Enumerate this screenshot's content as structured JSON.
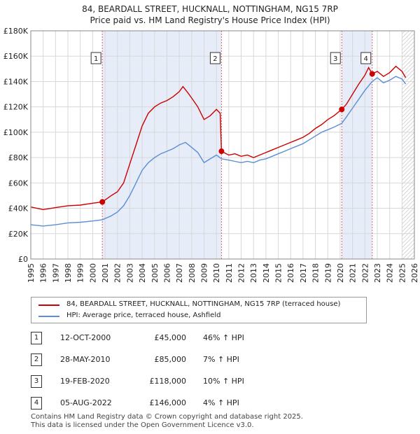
{
  "title_line1": "84, BEARDALL STREET, HUCKNALL, NOTTINGHAM, NG15 7RP",
  "title_line2": "Price paid vs. HM Land Registry's House Price Index (HPI)",
  "colors": {
    "property": "#cc0000",
    "hpi": "#5b8ed6",
    "shade": "#e6ecf8",
    "grid": "#d8d8d8"
  },
  "chart_data": {
    "type": "line",
    "title": "Price paid vs. HM Land Registry's House Price Index (HPI)",
    "xlabel": "",
    "ylabel": "",
    "xlim": [
      1995,
      2026
    ],
    "ylim": [
      0,
      180000
    ],
    "y_ticks": [
      0,
      20000,
      40000,
      60000,
      80000,
      100000,
      120000,
      140000,
      160000,
      180000
    ],
    "y_tick_labels": [
      "£0",
      "£20K",
      "£40K",
      "£60K",
      "£80K",
      "£100K",
      "£120K",
      "£140K",
      "£160K",
      "£180K"
    ],
    "x_ticks": [
      1995,
      1996,
      1997,
      1998,
      1999,
      2000,
      2001,
      2002,
      2003,
      2004,
      2005,
      2006,
      2007,
      2008,
      2009,
      2010,
      2011,
      2012,
      2013,
      2014,
      2015,
      2016,
      2017,
      2018,
      2019,
      2020,
      2021,
      2022,
      2023,
      2024,
      2025,
      2026
    ],
    "shaded_ranges": [
      [
        2000.78,
        2010.41
      ],
      [
        2020.13,
        2022.59
      ]
    ],
    "hatch_from": 2025.0,
    "series": [
      {
        "name": "84, BEARDALL STREET, HUCKNALL, NOTTINGHAM, NG15 7RP (terraced house)",
        "color": "#cc0000",
        "points": [
          [
            1995,
            41000
          ],
          [
            1996,
            39000
          ],
          [
            1997,
            40500
          ],
          [
            1998,
            42000
          ],
          [
            1999,
            42500
          ],
          [
            2000,
            44000
          ],
          [
            2000.78,
            45000
          ],
          [
            2001.5,
            50000
          ],
          [
            2002,
            53000
          ],
          [
            2002.5,
            60000
          ],
          [
            2003,
            75000
          ],
          [
            2003.5,
            90000
          ],
          [
            2004,
            105000
          ],
          [
            2004.5,
            115000
          ],
          [
            2005,
            120000
          ],
          [
            2005.5,
            123000
          ],
          [
            2006,
            125000
          ],
          [
            2006.5,
            128000
          ],
          [
            2007,
            132000
          ],
          [
            2007.3,
            136000
          ],
          [
            2007.7,
            131000
          ],
          [
            2008,
            127000
          ],
          [
            2008.5,
            120000
          ],
          [
            2009,
            110000
          ],
          [
            2009.5,
            113000
          ],
          [
            2010,
            118000
          ],
          [
            2010.3,
            115000
          ],
          [
            2010.41,
            85000
          ],
          [
            2011,
            82000
          ],
          [
            2011.5,
            83000
          ],
          [
            2012,
            81000
          ],
          [
            2012.5,
            82000
          ],
          [
            2013,
            80000
          ],
          [
            2013.5,
            82000
          ],
          [
            2014,
            84000
          ],
          [
            2014.5,
            86000
          ],
          [
            2015,
            88000
          ],
          [
            2015.5,
            90000
          ],
          [
            2016,
            92000
          ],
          [
            2016.5,
            94000
          ],
          [
            2017,
            96000
          ],
          [
            2017.5,
            99000
          ],
          [
            2018,
            103000
          ],
          [
            2018.5,
            106000
          ],
          [
            2019,
            110000
          ],
          [
            2019.5,
            113000
          ],
          [
            2020.13,
            118000
          ],
          [
            2020.5,
            122000
          ],
          [
            2021,
            130000
          ],
          [
            2021.5,
            138000
          ],
          [
            2022,
            145000
          ],
          [
            2022.3,
            151000
          ],
          [
            2022.59,
            146000
          ],
          [
            2023,
            148000
          ],
          [
            2023.5,
            144000
          ],
          [
            2024,
            147000
          ],
          [
            2024.5,
            152000
          ],
          [
            2025,
            148000
          ],
          [
            2025.3,
            143000
          ]
        ]
      },
      {
        "name": "HPI: Average price, terraced house, Ashfield",
        "color": "#5b8ed6",
        "points": [
          [
            1995,
            27000
          ],
          [
            1996,
            26000
          ],
          [
            1997,
            27000
          ],
          [
            1998,
            28500
          ],
          [
            1999,
            29000
          ],
          [
            2000,
            30000
          ],
          [
            2000.78,
            31000
          ],
          [
            2001.5,
            34000
          ],
          [
            2002,
            37000
          ],
          [
            2002.5,
            42000
          ],
          [
            2003,
            50000
          ],
          [
            2003.5,
            60000
          ],
          [
            2004,
            70000
          ],
          [
            2004.5,
            76000
          ],
          [
            2005,
            80000
          ],
          [
            2005.5,
            83000
          ],
          [
            2006,
            85000
          ],
          [
            2006.5,
            87000
          ],
          [
            2007,
            90000
          ],
          [
            2007.5,
            92000
          ],
          [
            2008,
            88000
          ],
          [
            2008.5,
            84000
          ],
          [
            2009,
            76000
          ],
          [
            2009.5,
            79000
          ],
          [
            2010,
            82000
          ],
          [
            2010.41,
            79000
          ],
          [
            2011,
            78000
          ],
          [
            2011.5,
            77000
          ],
          [
            2012,
            76000
          ],
          [
            2012.5,
            77000
          ],
          [
            2013,
            76000
          ],
          [
            2013.5,
            78000
          ],
          [
            2014,
            79000
          ],
          [
            2014.5,
            81000
          ],
          [
            2015,
            83000
          ],
          [
            2015.5,
            85000
          ],
          [
            2016,
            87000
          ],
          [
            2016.5,
            89000
          ],
          [
            2017,
            91000
          ],
          [
            2017.5,
            94000
          ],
          [
            2018,
            97000
          ],
          [
            2018.5,
            100000
          ],
          [
            2019,
            102000
          ],
          [
            2019.5,
            104000
          ],
          [
            2020.13,
            107000
          ],
          [
            2020.5,
            112000
          ],
          [
            2021,
            119000
          ],
          [
            2021.5,
            126000
          ],
          [
            2022,
            133000
          ],
          [
            2022.59,
            140000
          ],
          [
            2023,
            143000
          ],
          [
            2023.5,
            139000
          ],
          [
            2024,
            141000
          ],
          [
            2024.5,
            144000
          ],
          [
            2025,
            142000
          ],
          [
            2025.3,
            138000
          ]
        ]
      }
    ],
    "sales": [
      {
        "label": "1",
        "x": 2000.78,
        "price": 45000
      },
      {
        "label": "2",
        "x": 2010.41,
        "price": 85000
      },
      {
        "label": "3",
        "x": 2020.13,
        "price": 118000
      },
      {
        "label": "4",
        "x": 2022.59,
        "price": 146000
      }
    ]
  },
  "legend": {
    "property_label": "84, BEARDALL STREET, HUCKNALL, NOTTINGHAM, NG15 7RP (terraced house)",
    "hpi_label": "HPI: Average price, terraced house, Ashfield"
  },
  "table": [
    {
      "num": "1",
      "date": "12-OCT-2000",
      "price": "£45,000",
      "hpi": "46% ↑ HPI"
    },
    {
      "num": "2",
      "date": "28-MAY-2010",
      "price": "£85,000",
      "hpi": "7% ↑ HPI"
    },
    {
      "num": "3",
      "date": "19-FEB-2020",
      "price": "£118,000",
      "hpi": "10% ↑ HPI"
    },
    {
      "num": "4",
      "date": "05-AUG-2022",
      "price": "£146,000",
      "hpi": "4% ↑ HPI"
    }
  ],
  "footer_line1": "Contains HM Land Registry data © Crown copyright and database right 2025.",
  "footer_line2": "This data is licensed under the Open Government Licence v3.0."
}
